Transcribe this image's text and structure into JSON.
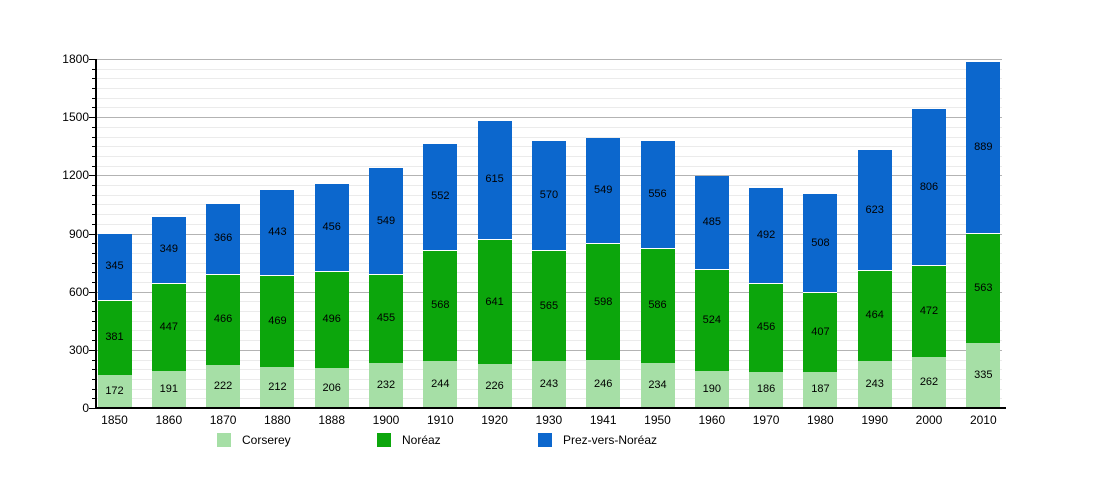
{
  "chart_data": {
    "type": "bar",
    "stacked": true,
    "categories": [
      "1850",
      "1860",
      "1870",
      "1880",
      "1888",
      "1900",
      "1910",
      "1920",
      "1930",
      "1941",
      "1950",
      "1960",
      "1970",
      "1980",
      "1990",
      "2000",
      "2010"
    ],
    "series": [
      {
        "name": "Corserey",
        "color": "#a6dfa6",
        "values": [
          172,
          191,
          222,
          212,
          206,
          232,
          244,
          226,
          243,
          246,
          234,
          190,
          186,
          187,
          243,
          262,
          335
        ]
      },
      {
        "name": "Noréaz",
        "color": "#0ca60c",
        "values": [
          381,
          447,
          466,
          469,
          496,
          455,
          568,
          641,
          565,
          598,
          586,
          524,
          456,
          407,
          464,
          472,
          563
        ]
      },
      {
        "name": "Prez-vers-Noréaz",
        "color": "#0c67cd",
        "values": [
          345,
          349,
          366,
          443,
          456,
          549,
          552,
          615,
          570,
          549,
          556,
          485,
          492,
          508,
          623,
          806,
          889
        ]
      }
    ],
    "ylim": [
      0,
      1800
    ],
    "yticks": [
      0,
      300,
      600,
      900,
      1200,
      1500,
      1800
    ],
    "minor_tick_step": 50,
    "grid": "on",
    "legend_position": "bottom",
    "value_labels": "inside-segments",
    "axis_color": "#000000",
    "major_grid_color": "#b3b3b3",
    "minor_grid_color": "#ebebeb"
  }
}
